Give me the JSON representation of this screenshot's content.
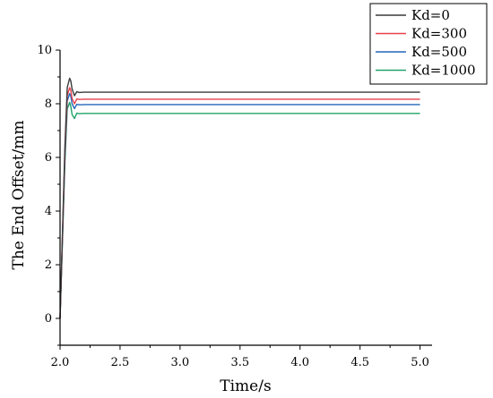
{
  "chart_data": {
    "type": "line",
    "title": "",
    "xlabel": "Time/s",
    "ylabel": "The End Offset/mm",
    "xlim": [
      2.0,
      5.1
    ],
    "ylim": [
      -1,
      10
    ],
    "xticks": [
      "2.0",
      "2.5",
      "3.0",
      "3.5",
      "4.0",
      "4.5",
      "5.0"
    ],
    "yticks": [
      "0",
      "2",
      "4",
      "6",
      "8",
      "10"
    ],
    "legend_position": "top-right-outside",
    "grid": false,
    "series": [
      {
        "name": "Kd=0",
        "color": "#3a3a3a",
        "x": [
          2.0,
          2.02,
          2.04,
          2.06,
          2.08,
          2.09,
          2.1,
          2.12,
          2.14,
          2.16,
          2.2,
          2.3,
          5.0
        ],
        "y": [
          0.0,
          3.2,
          6.4,
          8.6,
          8.95,
          8.85,
          8.55,
          8.3,
          8.45,
          8.42,
          8.43,
          8.43,
          8.43
        ]
      },
      {
        "name": "Kd=300",
        "color": "#e8414a",
        "x": [
          2.0,
          2.02,
          2.04,
          2.06,
          2.08,
          2.09,
          2.1,
          2.12,
          2.14,
          2.16,
          2.2,
          2.3,
          5.0
        ],
        "y": [
          0.0,
          3.1,
          6.2,
          8.3,
          8.6,
          8.5,
          8.2,
          8.0,
          8.18,
          8.16,
          8.17,
          8.17,
          8.17
        ]
      },
      {
        "name": "Kd=500",
        "color": "#2466b8",
        "x": [
          2.0,
          2.02,
          2.04,
          2.06,
          2.08,
          2.09,
          2.1,
          2.12,
          2.14,
          2.16,
          2.2,
          2.3,
          5.0
        ],
        "y": [
          0.0,
          3.0,
          6.0,
          8.1,
          8.38,
          8.28,
          8.0,
          7.82,
          7.98,
          7.96,
          7.97,
          7.97,
          7.97
        ]
      },
      {
        "name": "Kd=1000",
        "color": "#22a36a",
        "x": [
          2.0,
          2.02,
          2.04,
          2.06,
          2.08,
          2.09,
          2.1,
          2.12,
          2.14,
          2.16,
          2.2,
          2.3,
          5.0
        ],
        "y": [
          0.0,
          2.9,
          5.8,
          7.8,
          8.05,
          7.9,
          7.6,
          7.45,
          7.65,
          7.63,
          7.64,
          7.64,
          7.64
        ]
      }
    ]
  }
}
